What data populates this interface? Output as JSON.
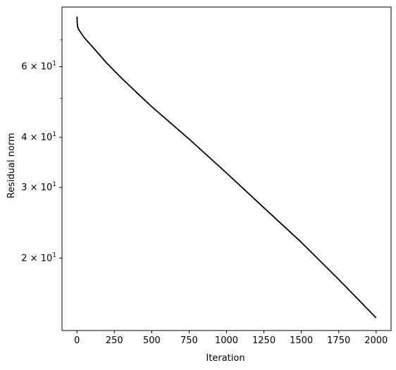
{
  "chart_data": {
    "type": "line",
    "title": "",
    "xlabel": "Iteration",
    "ylabel": "Residual norm",
    "xlim": [
      -100,
      2100
    ],
    "ylim": [
      13.2,
      84.5
    ],
    "yscale": "log",
    "grid": false,
    "x_ticks": [
      0,
      250,
      500,
      750,
      1000,
      1250,
      1500,
      1750,
      2000
    ],
    "x_tick_labels": [
      "0",
      "250",
      "500",
      "750",
      "1000",
      "1250",
      "1500",
      "1750",
      "2000"
    ],
    "y_major_ticks": [
      20,
      30,
      40,
      60
    ],
    "y_major_tick_labels": [
      {
        "mantissa": "2",
        "base": "10",
        "exp": "1"
      },
      {
        "mantissa": "3",
        "base": "10",
        "exp": "1"
      },
      {
        "mantissa": "4",
        "base": "10",
        "exp": "1"
      },
      {
        "mantissa": "6",
        "base": "10",
        "exp": "1"
      }
    ],
    "y_minor_ticks": [
      50,
      70
    ],
    "series": [
      {
        "color": "#000000",
        "x": [
          0,
          2,
          5,
          10,
          20,
          50,
          100,
          200,
          300,
          400,
          500,
          750,
          1000,
          1250,
          1500,
          1750,
          2000
        ],
        "y": [
          80.0,
          77.0,
          75.3,
          74.5,
          73.5,
          70.8,
          67.5,
          61.2,
          56.1,
          51.7,
          47.7,
          39.6,
          32.6,
          26.7,
          21.9,
          17.7,
          14.2
        ]
      }
    ]
  }
}
